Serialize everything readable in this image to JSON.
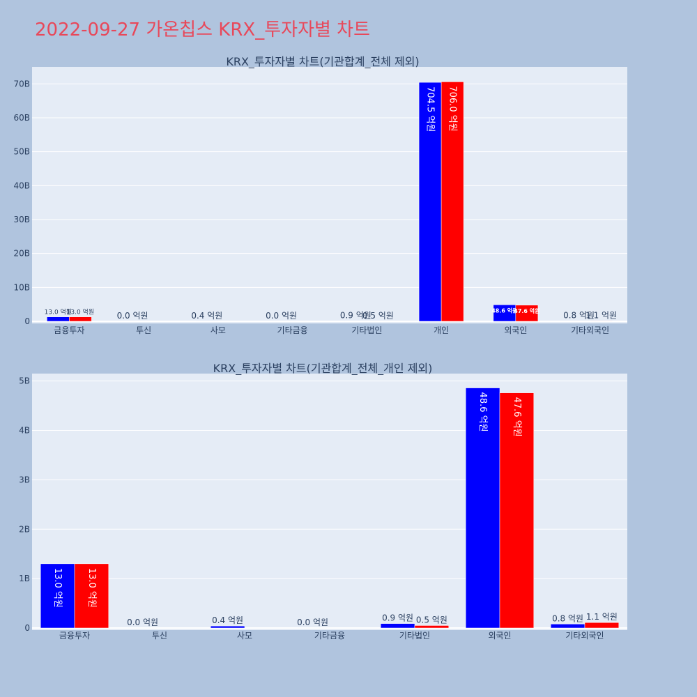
{
  "page_title": "2022-09-27 가온칩스 KRX_투자자별 차트",
  "colors": {
    "buy": "#0000ff",
    "sell": "#ff0000",
    "plot_bg": "#e5ecf6",
    "page_bg": "#b0c4de",
    "title": "#e8485a"
  },
  "chart_data": [
    {
      "type": "bar",
      "title": "KRX_투자자별 차트(기관합계_전체 제외)",
      "categories": [
        "금융투자",
        "투신",
        "사모",
        "기타금융",
        "기타법인",
        "개인",
        "외국인",
        "기타외국인"
      ],
      "series": [
        {
          "values": [
            1.3,
            0.0,
            0.04,
            0.0,
            0.09,
            70.45,
            4.86,
            0.08
          ],
          "labels": [
            "13.0 억원",
            "0.0 억원",
            "0.4 억원",
            "0.0 억원",
            "0.9 억원",
            "704.5 억원",
            "48.6 억원",
            "0.8 억원"
          ],
          "color": "#0000ff"
        },
        {
          "values": [
            1.3,
            0.0,
            0.0,
            0.0,
            0.05,
            70.6,
            4.76,
            0.11
          ],
          "labels": [
            "13.0 억원",
            "",
            "",
            "",
            "0.5 억원",
            "706.0 억원",
            "47.6 억원",
            "1.1 억원"
          ],
          "color": "#ff0000"
        }
      ],
      "y_unit": "B",
      "ylim": [
        0,
        75
      ],
      "yticks": [
        0,
        10,
        20,
        30,
        40,
        50,
        60,
        70
      ],
      "ytick_labels": [
        "0",
        "10B",
        "20B",
        "30B",
        "40B",
        "50B",
        "60B",
        "70B"
      ],
      "grid": true
    },
    {
      "type": "bar",
      "title": "KRX_투자자별 차트(기관합계_전체_개인 제외)",
      "categories": [
        "금융투자",
        "투신",
        "사모",
        "기타금융",
        "기타법인",
        "외국인",
        "기타외국인"
      ],
      "series": [
        {
          "values": [
            1.3,
            0.0,
            0.04,
            0.0,
            0.09,
            4.86,
            0.08
          ],
          "labels": [
            "13.0 억원",
            "0.0 억원",
            "0.4 억원",
            "0.0 억원",
            "0.9 억원",
            "48.6 억원",
            "0.8 억원"
          ],
          "color": "#0000ff"
        },
        {
          "values": [
            1.3,
            0.0,
            0.0,
            0.0,
            0.05,
            4.76,
            0.11
          ],
          "labels": [
            "13.0 억원",
            "",
            "",
            "",
            "0.5 억원",
            "47.6 억원",
            "1.1 억원"
          ],
          "color": "#ff0000"
        }
      ],
      "y_unit": "B",
      "ylim": [
        0,
        5.15
      ],
      "yticks": [
        0,
        1,
        2,
        3,
        4,
        5
      ],
      "ytick_labels": [
        "0",
        "1B",
        "2B",
        "3B",
        "4B",
        "5B"
      ],
      "grid": true
    }
  ]
}
